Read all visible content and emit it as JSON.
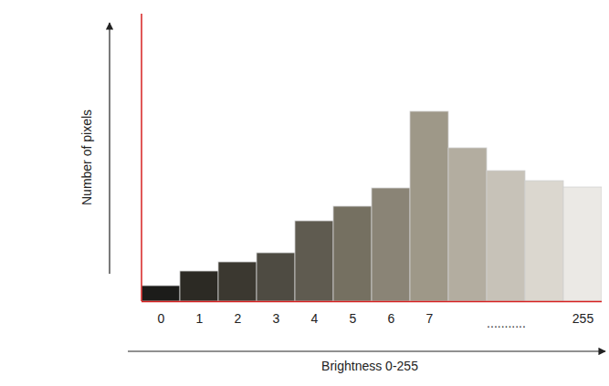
{
  "chart_data": {
    "type": "bar",
    "x_label": "Brightness 0-255",
    "y_label": "Number of pixels",
    "categories": [
      0,
      1,
      2,
      3,
      4,
      5,
      6,
      7,
      null,
      null,
      null,
      255
    ],
    "values": [
      17,
      33,
      43,
      53,
      88,
      104,
      124,
      208,
      168,
      143,
      132,
      125
    ],
    "colors": [
      "#1c1c1a",
      "#2c2a24",
      "#3b3830",
      "#4e4b42",
      "#5f5b50",
      "#757061",
      "#8a8476",
      "#9e9888",
      "#b3ada0",
      "#c7c2b8",
      "#dbd7cf",
      "#ebe9e5"
    ],
    "ylim": [
      0,
      315
    ],
    "yticks": [],
    "tick_labels": "x",
    "annotations": [
      {
        "text": "..........."
      }
    ]
  }
}
